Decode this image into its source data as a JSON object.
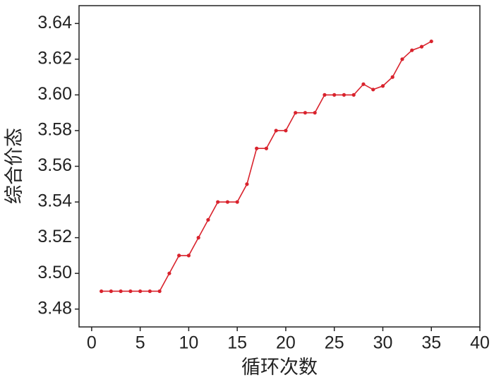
{
  "chart_data": {
    "type": "line",
    "x_label": "循环次数",
    "y_label": "综合价态",
    "x": [
      1,
      2,
      3,
      4,
      5,
      6,
      7,
      8,
      9,
      10,
      11,
      12,
      13,
      14,
      15,
      16,
      17,
      18,
      19,
      20,
      21,
      22,
      23,
      24,
      25,
      26,
      27,
      28,
      29,
      30,
      31,
      32,
      33,
      34,
      35
    ],
    "series": [
      {
        "color": "#d9232d",
        "values": [
          3.49,
          3.49,
          3.49,
          3.49,
          3.49,
          3.49,
          3.49,
          3.5,
          3.51,
          3.51,
          3.52,
          3.53,
          3.54,
          3.54,
          3.54,
          3.55,
          3.57,
          3.57,
          3.58,
          3.58,
          3.59,
          3.59,
          3.59,
          3.6,
          3.6,
          3.6,
          3.6,
          3.606,
          3.603,
          3.605,
          3.61,
          3.62,
          3.625,
          3.627,
          3.63
        ]
      }
    ],
    "xlim": [
      -1.3,
      40
    ],
    "xticks": [
      0,
      5,
      10,
      15,
      20,
      25,
      30,
      35,
      40
    ],
    "ylim": [
      3.47,
      3.65
    ],
    "yticks": [
      {
        "value": 3.48,
        "label": "3.48"
      },
      {
        "value": 3.5,
        "label": "3.50"
      },
      {
        "value": 3.52,
        "label": "3.52"
      },
      {
        "value": 3.54,
        "label": "3.54"
      },
      {
        "value": 3.56,
        "label": "3.56"
      },
      {
        "value": 3.58,
        "label": "3.58"
      },
      {
        "value": 3.6,
        "label": "3.60"
      },
      {
        "value": 3.62,
        "label": "3.62"
      },
      {
        "value": 3.64,
        "label": "3.64"
      }
    ],
    "grid": false
  }
}
